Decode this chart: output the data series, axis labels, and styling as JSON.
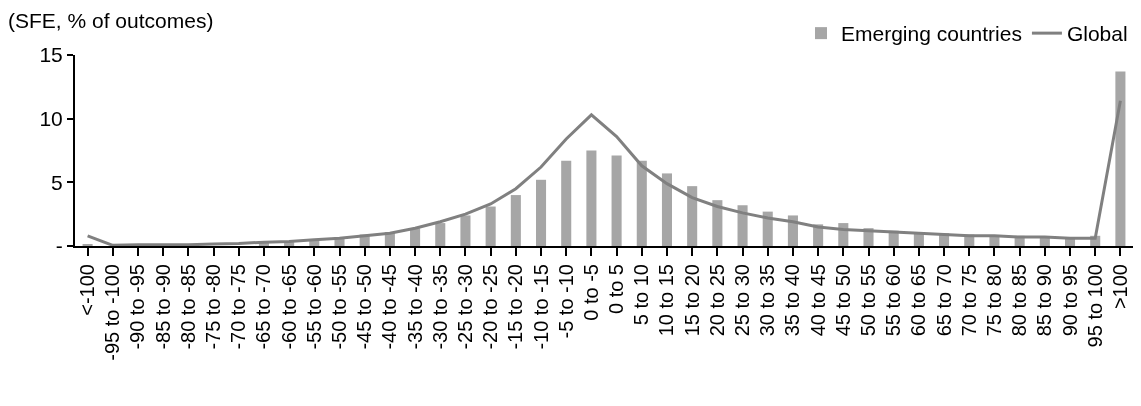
{
  "chart_data": {
    "type": "bar",
    "ylabel": "(SFE, % of outcomes)",
    "categories": [
      "<-100",
      "-95 to -100",
      "-90 to -95",
      "-85 to -90",
      "-80 to -85",
      "-75 to -80",
      "-70 to -75",
      "-65 to -70",
      "-60 to -65",
      "-55 to -60",
      "-50 to -55",
      "-45 to -50",
      "-40 to -45",
      "-35 to -40",
      "-30 to -35",
      "-25 to -30",
      "-20 to -25",
      "-15 to -20",
      "-10 to -15",
      "-5 to -10",
      "0 to -5",
      "0 to 5",
      "5 to 10",
      "10 to 15",
      "15 to 20",
      "20 to 25",
      "25 to 30",
      "30 to 35",
      "35 to 40",
      "40 to 45",
      "45 to 50",
      "50 to 55",
      "55 to 60",
      "60 to 65",
      "65 to 70",
      "70 to 75",
      "75 to 80",
      "80 to 85",
      "85 to 90",
      "90 to 95",
      "95 to 100",
      ">100"
    ],
    "series": [
      {
        "name": "Emerging countries",
        "color": "#a6a6a6",
        "values": [
          0.1,
          null,
          0.05,
          0.1,
          0.1,
          null,
          null,
          0.3,
          0.3,
          0.5,
          0.7,
          0.9,
          1.1,
          1.4,
          1.8,
          2.4,
          3.1,
          4.0,
          5.2,
          6.7,
          7.5,
          7.1,
          6.7,
          5.7,
          4.7,
          3.6,
          3.2,
          2.7,
          2.4,
          1.7,
          1.8,
          1.4,
          1.2,
          1.1,
          1.0,
          0.9,
          0.8,
          0.8,
          0.7,
          0.7,
          0.8,
          13.7
        ]
      },
      {
        "name": "Global",
        "type": "line",
        "color": "#808080",
        "values": [
          0.8,
          0.05,
          0.1,
          0.1,
          0.1,
          0.15,
          0.2,
          0.3,
          0.35,
          0.5,
          0.6,
          0.8,
          1.0,
          1.4,
          1.9,
          2.5,
          3.3,
          4.5,
          6.2,
          8.4,
          10.3,
          8.6,
          6.3,
          4.9,
          3.8,
          3.1,
          2.6,
          2.2,
          1.9,
          1.5,
          1.3,
          1.2,
          1.1,
          1.0,
          0.9,
          0.8,
          0.8,
          0.7,
          0.7,
          0.6,
          0.6,
          11.4
        ]
      }
    ],
    "ylim": [
      0,
      15
    ],
    "yticks": [
      {
        "value": 0,
        "label": "-"
      },
      5,
      10,
      15
    ],
    "legend": "top right",
    "marker": "none",
    "line_style": "solid"
  }
}
